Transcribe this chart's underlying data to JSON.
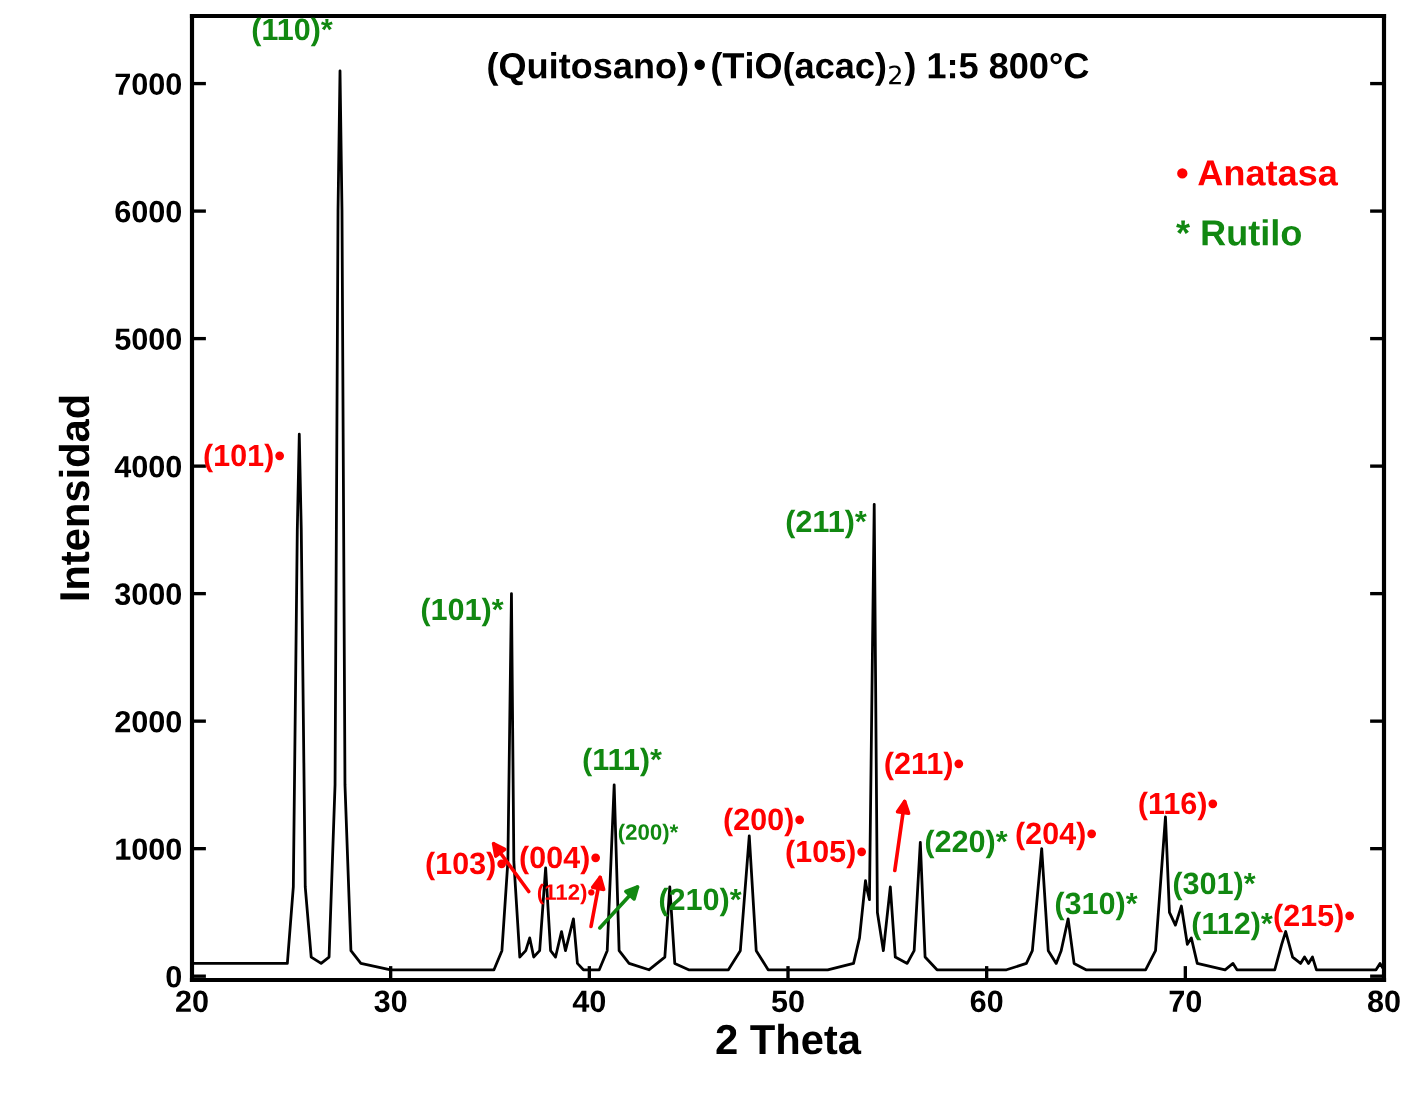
{
  "chart_data": {
    "type": "line",
    "title": "(Quitosano)•(TiO(acac)$_{2}$) 1:5 800°C",
    "xlabel": "2 Theta",
    "ylabel": "Intensidad",
    "xlim": [
      20,
      80
    ],
    "xticks": [
      20,
      30,
      40,
      50,
      60,
      70,
      80
    ],
    "ylim": [
      -30,
      7530
    ],
    "yticks": [
      0,
      1000,
      2000,
      3000,
      4000,
      5000,
      6000,
      7000
    ],
    "grid": false,
    "series": [
      {
        "color": "#000000",
        "x": [
          20,
          22,
          24,
          24.8,
          25.1,
          25.3,
          25.4,
          25.5,
          25.7,
          26.0,
          26.5,
          26.9,
          27.2,
          27.35,
          27.45,
          27.55,
          27.7,
          28.0,
          28.5,
          30,
          32,
          34,
          35.2,
          35.6,
          35.9,
          36.08,
          36.2,
          36.5,
          36.8,
          37.0,
          37.2,
          37.5,
          37.8,
          38.05,
          38.3,
          38.6,
          38.8,
          39.2,
          39.4,
          39.7,
          40.5,
          40.9,
          41.25,
          41.5,
          42,
          43,
          43.8,
          44.05,
          44.3,
          45,
          47,
          47.6,
          48.05,
          48.4,
          49,
          52,
          53.3,
          53.6,
          53.9,
          53.95,
          54.1,
          54.34,
          54.5,
          54.8,
          55.15,
          55.4,
          56,
          56.35,
          56.66,
          56.9,
          57.5,
          61,
          62,
          62.3,
          62.77,
          63.1,
          63.5,
          63.75,
          64.1,
          64.4,
          65,
          65.3,
          66,
          68,
          68.5,
          69.0,
          69.2,
          69.5,
          69.8,
          70.1,
          70.3,
          70.6,
          72,
          72.4,
          72.6,
          74.5,
          74.85,
          75.05,
          75.4,
          75.8,
          76.0,
          76.2,
          76.4,
          76.6,
          79,
          79.6,
          79.8,
          80
        ],
        "values": [
          100,
          100,
          100,
          100,
          700,
          3500,
          4250,
          3500,
          700,
          150,
          100,
          150,
          1500,
          6000,
          7100,
          6000,
          1500,
          200,
          100,
          50,
          50,
          50,
          50,
          200,
          900,
          3000,
          900,
          150,
          200,
          300,
          150,
          200,
          850,
          200,
          150,
          350,
          200,
          450,
          100,
          50,
          50,
          200,
          1500,
          200,
          100,
          50,
          150,
          700,
          100,
          50,
          50,
          200,
          1100,
          200,
          50,
          50,
          100,
          300,
          750,
          700,
          600,
          3700,
          500,
          200,
          700,
          150,
          100,
          200,
          1050,
          150,
          50,
          50,
          100,
          200,
          1000,
          200,
          100,
          200,
          450,
          100,
          50,
          50,
          50,
          50,
          200,
          1250,
          500,
          400,
          550,
          250,
          300,
          100,
          50,
          100,
          50,
          50,
          250,
          350,
          150,
          100,
          150,
          100,
          150,
          50,
          50,
          50,
          100,
          50
        ]
      }
    ],
    "annotations": [
      "• Anatasa",
      "* Rutilo",
      "(110)*",
      "(101)•",
      "(101)*",
      "(103)•",
      "(004)•",
      "(112)•",
      "(200)*",
      "(111)*",
      "(210)*",
      "(200)•",
      "(105)•",
      "(211)*",
      "(211)•",
      "(220)*",
      "(204)•",
      "(310)*",
      "(116)•",
      "(301)*",
      "(112)*",
      "(215)•"
    ]
  }
}
